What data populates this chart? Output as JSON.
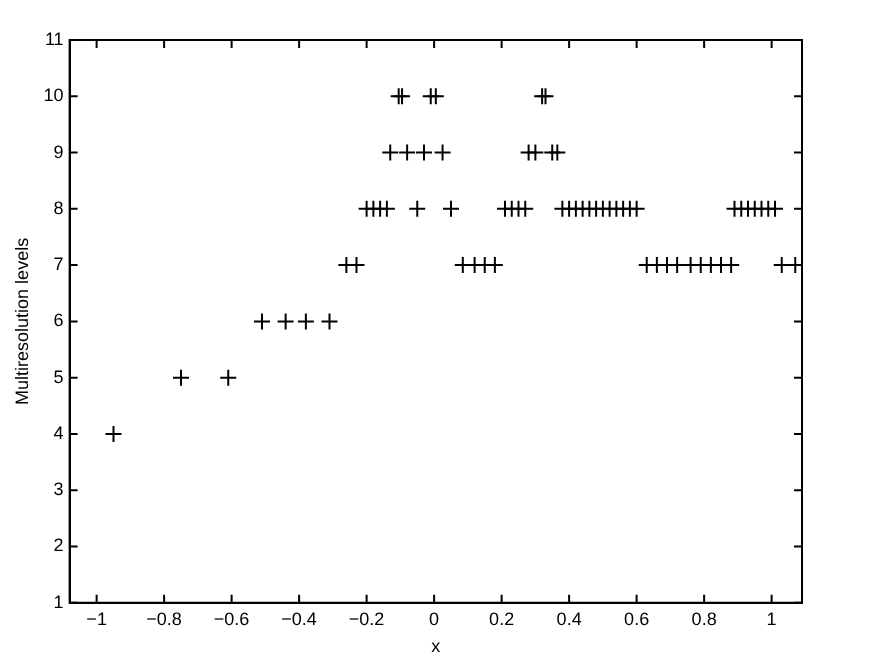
{
  "chart_data": {
    "type": "scatter",
    "xlabel": "x",
    "ylabel": "Multiresolution levels",
    "marker": "cross",
    "grid": false,
    "legend": false,
    "xlim": [
      -1.08,
      1.09
    ],
    "xticks": [
      {
        "value": -1,
        "label": "−1"
      },
      {
        "value": -0.8,
        "label": "−0.8"
      },
      {
        "value": -0.6,
        "label": "−0.6"
      },
      {
        "value": -0.4,
        "label": "−0.4"
      },
      {
        "value": -0.2,
        "label": "−0.2"
      },
      0,
      0.2,
      0.4,
      0.6,
      0.8,
      1
    ],
    "ylim": [
      1,
      11
    ],
    "yticks": [
      1,
      2,
      3,
      4,
      5,
      6,
      7,
      8,
      9,
      10,
      11
    ],
    "series": [
      {
        "color": "#000000",
        "x": [
          -0.95,
          -0.75,
          -0.61,
          -0.51,
          -0.44,
          -0.38,
          -0.31,
          -0.26,
          -0.23,
          0.085,
          0.12,
          0.15,
          0.18,
          0.63,
          0.66,
          0.69,
          0.72,
          0.76,
          0.79,
          0.82,
          0.85,
          0.88,
          1.03,
          1.07,
          -0.2,
          -0.18,
          -0.16,
          -0.14,
          -0.05,
          0.05,
          0.21,
          0.23,
          0.25,
          0.27,
          0.38,
          0.4,
          0.42,
          0.44,
          0.46,
          0.48,
          0.5,
          0.52,
          0.54,
          0.56,
          0.58,
          0.6,
          0.89,
          0.91,
          0.93,
          0.95,
          0.97,
          0.99,
          1.01,
          -0.13,
          -0.08,
          -0.03,
          0.025,
          0.28,
          0.3,
          0.35,
          0.365,
          -0.105,
          -0.095,
          -0.01,
          0.005,
          0.32,
          0.33
        ],
        "values": [
          4,
          5,
          5,
          6,
          6,
          6,
          6,
          7,
          7,
          7,
          7,
          7,
          7,
          7,
          7,
          7,
          7,
          7,
          7,
          7,
          7,
          7,
          7,
          7,
          8,
          8,
          8,
          8,
          8,
          8,
          8,
          8,
          8,
          8,
          8,
          8,
          8,
          8,
          8,
          8,
          8,
          8,
          8,
          8,
          8,
          8,
          8,
          8,
          8,
          8,
          8,
          8,
          8,
          9,
          9,
          9,
          9,
          9,
          9,
          9,
          9,
          10,
          10,
          10,
          10,
          10,
          10
        ]
      }
    ]
  }
}
